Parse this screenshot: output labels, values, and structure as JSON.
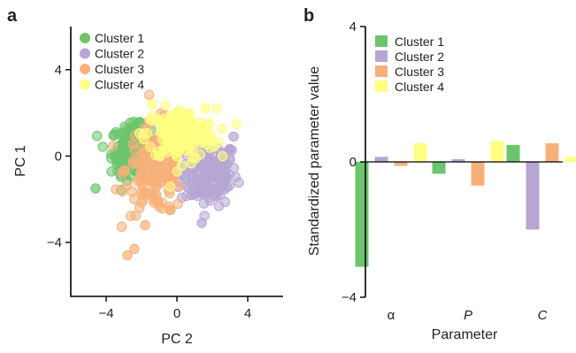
{
  "colors": {
    "cluster1": "#6cc56c",
    "cluster2": "#b7a6d3",
    "cluster3": "#f8b07a",
    "cluster4": "#ffff82"
  },
  "panel_a": {
    "label": "a"
  },
  "panel_b": {
    "label": "b"
  },
  "chart_data": [
    {
      "type": "scatter",
      "xlabel": "PC 2",
      "ylabel": "PC 1",
      "xlim": [
        -6,
        6
      ],
      "ylim": [
        -6.5,
        6
      ],
      "xticks": [
        -4,
        0,
        4
      ],
      "xtick_labels": [
        "−4",
        "0",
        "4"
      ],
      "yticks": [
        -4,
        0,
        4
      ],
      "ytick_labels": [
        "−4",
        "0",
        "4"
      ],
      "legend": [
        "Cluster 1",
        "Cluster 2",
        "Cluster 3",
        "Cluster 4"
      ],
      "legend_position": "top-left",
      "series": [
        {
          "name": "Cluster 1",
          "center": [
            -2.6,
            0.3
          ],
          "spread": [
            0.55,
            0.55
          ],
          "outliers": [
            [
              -4.6,
              -1.5
            ],
            [
              -3.2,
              -0.5
            ]
          ]
        },
        {
          "name": "Cluster 2",
          "center": [
            1.8,
            -0.8
          ],
          "spread": [
            0.8,
            0.75
          ],
          "outliers": [
            [
              1.4,
              -3.1
            ],
            [
              3.2,
              0.9
            ]
          ]
        },
        {
          "name": "Cluster 3",
          "center": [
            -1.2,
            -0.6
          ],
          "spread": [
            0.85,
            1.05
          ],
          "outliers": [
            [
              -2.8,
              -4.6
            ],
            [
              -2.4,
              -4.3
            ],
            [
              -1.8,
              -3.2
            ],
            [
              -0.4,
              -2.5
            ]
          ]
        },
        {
          "name": "Cluster 4",
          "center": [
            0.2,
            1.0
          ],
          "spread": [
            1.0,
            0.6
          ],
          "outliers": [
            [
              -1.4,
              2.4
            ],
            [
              1.6,
              2.2
            ]
          ]
        }
      ]
    },
    {
      "type": "bar",
      "xlabel": "Parameter",
      "ylabel": "Standardized parameter value",
      "ylim": [
        -4,
        4
      ],
      "yticks": [
        -4,
        0,
        4
      ],
      "ytick_labels": [
        "−4",
        "0",
        "4"
      ],
      "categories": [
        "α",
        "P",
        "C"
      ],
      "legend_position": "top-left",
      "series": [
        {
          "name": "Cluster 1",
          "values": [
            -3.1,
            -0.35,
            0.5
          ]
        },
        {
          "name": "Cluster 2",
          "values": [
            0.15,
            0.08,
            -2.0
          ]
        },
        {
          "name": "Cluster 3",
          "values": [
            -0.12,
            -0.7,
            0.55
          ]
        },
        {
          "name": "Cluster 4",
          "values": [
            0.55,
            0.62,
            0.15
          ]
        }
      ]
    }
  ]
}
